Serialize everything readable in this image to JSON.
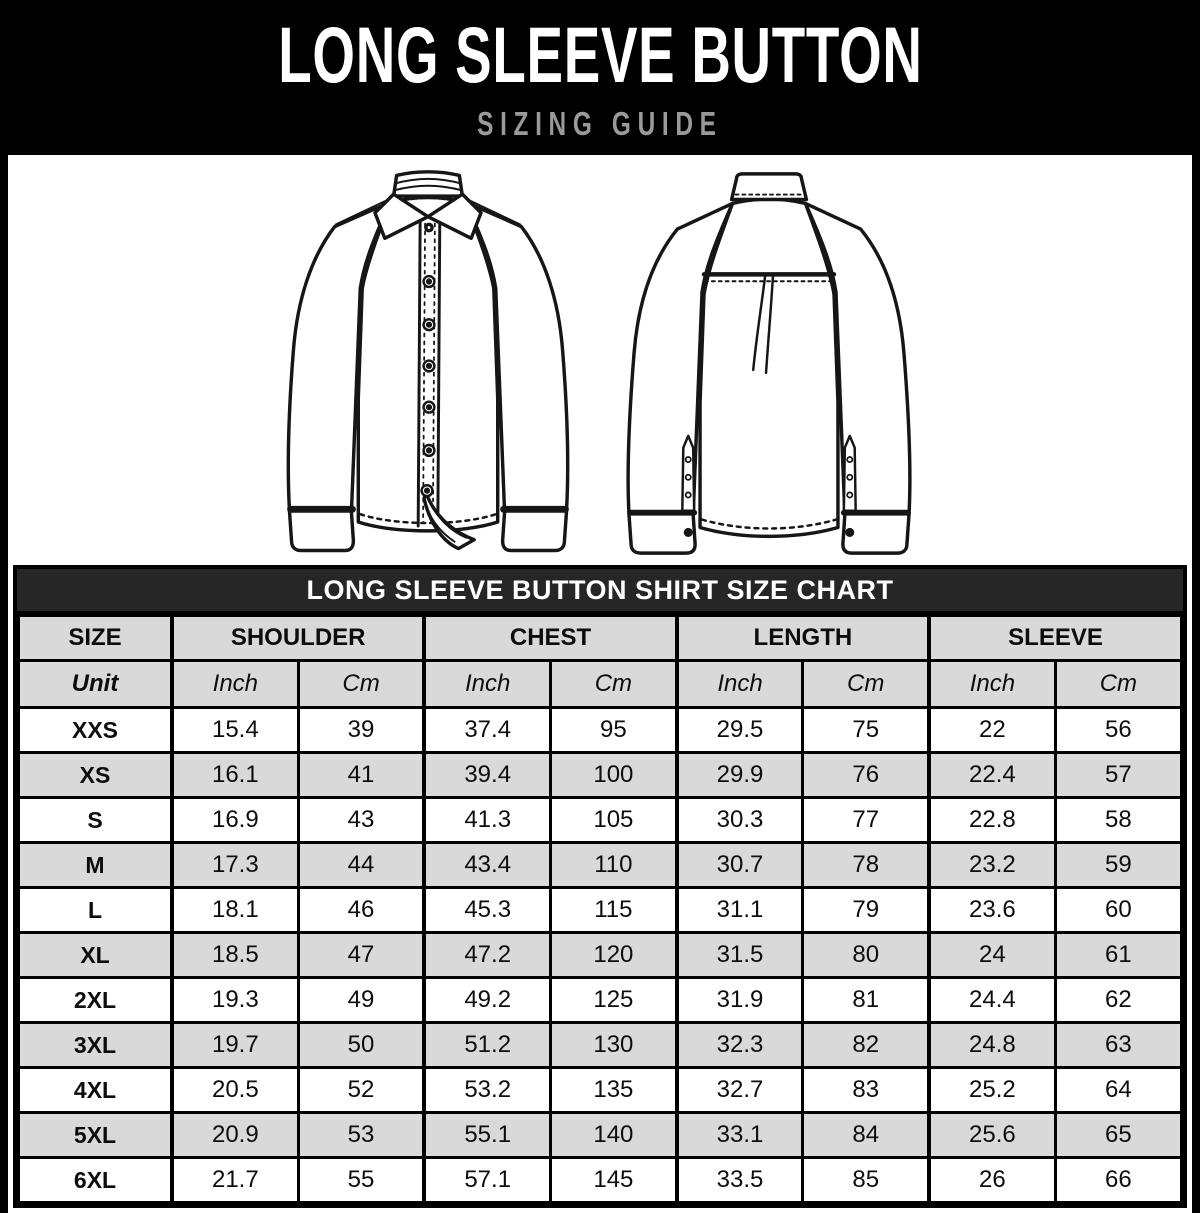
{
  "page": {
    "title": "LONG SLEEVE BUTTON",
    "subtitle": "SIZING GUIDE"
  },
  "illustrations": {
    "front_icon": "shirt-front-line-art",
    "back_icon": "shirt-back-line-art"
  },
  "size_chart": {
    "title": "LONG SLEEVE BUTTON SHIRT SIZE CHART",
    "column_groups": [
      {
        "label": "SIZE",
        "span": 1
      },
      {
        "label": "SHOULDER",
        "span": 2
      },
      {
        "label": "CHEST",
        "span": 2
      },
      {
        "label": "LENGTH",
        "span": 2
      },
      {
        "label": "SLEEVE",
        "span": 2
      }
    ],
    "unit_row": [
      "Unit",
      "Inch",
      "Cm",
      "Inch",
      "Cm",
      "Inch",
      "Cm",
      "Inch",
      "Cm"
    ],
    "rows": [
      {
        "size": "XXS",
        "values": [
          "15.4",
          "39",
          "37.4",
          "95",
          "29.5",
          "75",
          "22",
          "56"
        ]
      },
      {
        "size": "XS",
        "values": [
          "16.1",
          "41",
          "39.4",
          "100",
          "29.9",
          "76",
          "22.4",
          "57"
        ]
      },
      {
        "size": "S",
        "values": [
          "16.9",
          "43",
          "41.3",
          "105",
          "30.3",
          "77",
          "22.8",
          "58"
        ]
      },
      {
        "size": "M",
        "values": [
          "17.3",
          "44",
          "43.4",
          "110",
          "30.7",
          "78",
          "23.2",
          "59"
        ]
      },
      {
        "size": "L",
        "values": [
          "18.1",
          "46",
          "45.3",
          "115",
          "31.1",
          "79",
          "23.6",
          "60"
        ]
      },
      {
        "size": "XL",
        "values": [
          "18.5",
          "47",
          "47.2",
          "120",
          "31.5",
          "80",
          "24",
          "61"
        ]
      },
      {
        "size": "2XL",
        "values": [
          "19.3",
          "49",
          "49.2",
          "125",
          "31.9",
          "81",
          "24.4",
          "62"
        ]
      },
      {
        "size": "3XL",
        "values": [
          "19.7",
          "50",
          "51.2",
          "130",
          "32.3",
          "82",
          "24.8",
          "63"
        ]
      },
      {
        "size": "4XL",
        "values": [
          "20.5",
          "52",
          "53.2",
          "135",
          "32.7",
          "83",
          "25.2",
          "64"
        ]
      },
      {
        "size": "5XL",
        "values": [
          "20.9",
          "53",
          "55.1",
          "140",
          "33.1",
          "84",
          "25.6",
          "65"
        ]
      },
      {
        "size": "6XL",
        "values": [
          "21.7",
          "55",
          "57.1",
          "145",
          "33.5",
          "85",
          "26",
          "66"
        ]
      }
    ]
  },
  "colors": {
    "background": "#000000",
    "panel": "#ffffff",
    "table_title_bar": "#262626",
    "row_alt": "#d9d9d9",
    "title_text": "#ffffff",
    "subtitle_text": "#9a9a9a",
    "line_art": "#161616"
  }
}
